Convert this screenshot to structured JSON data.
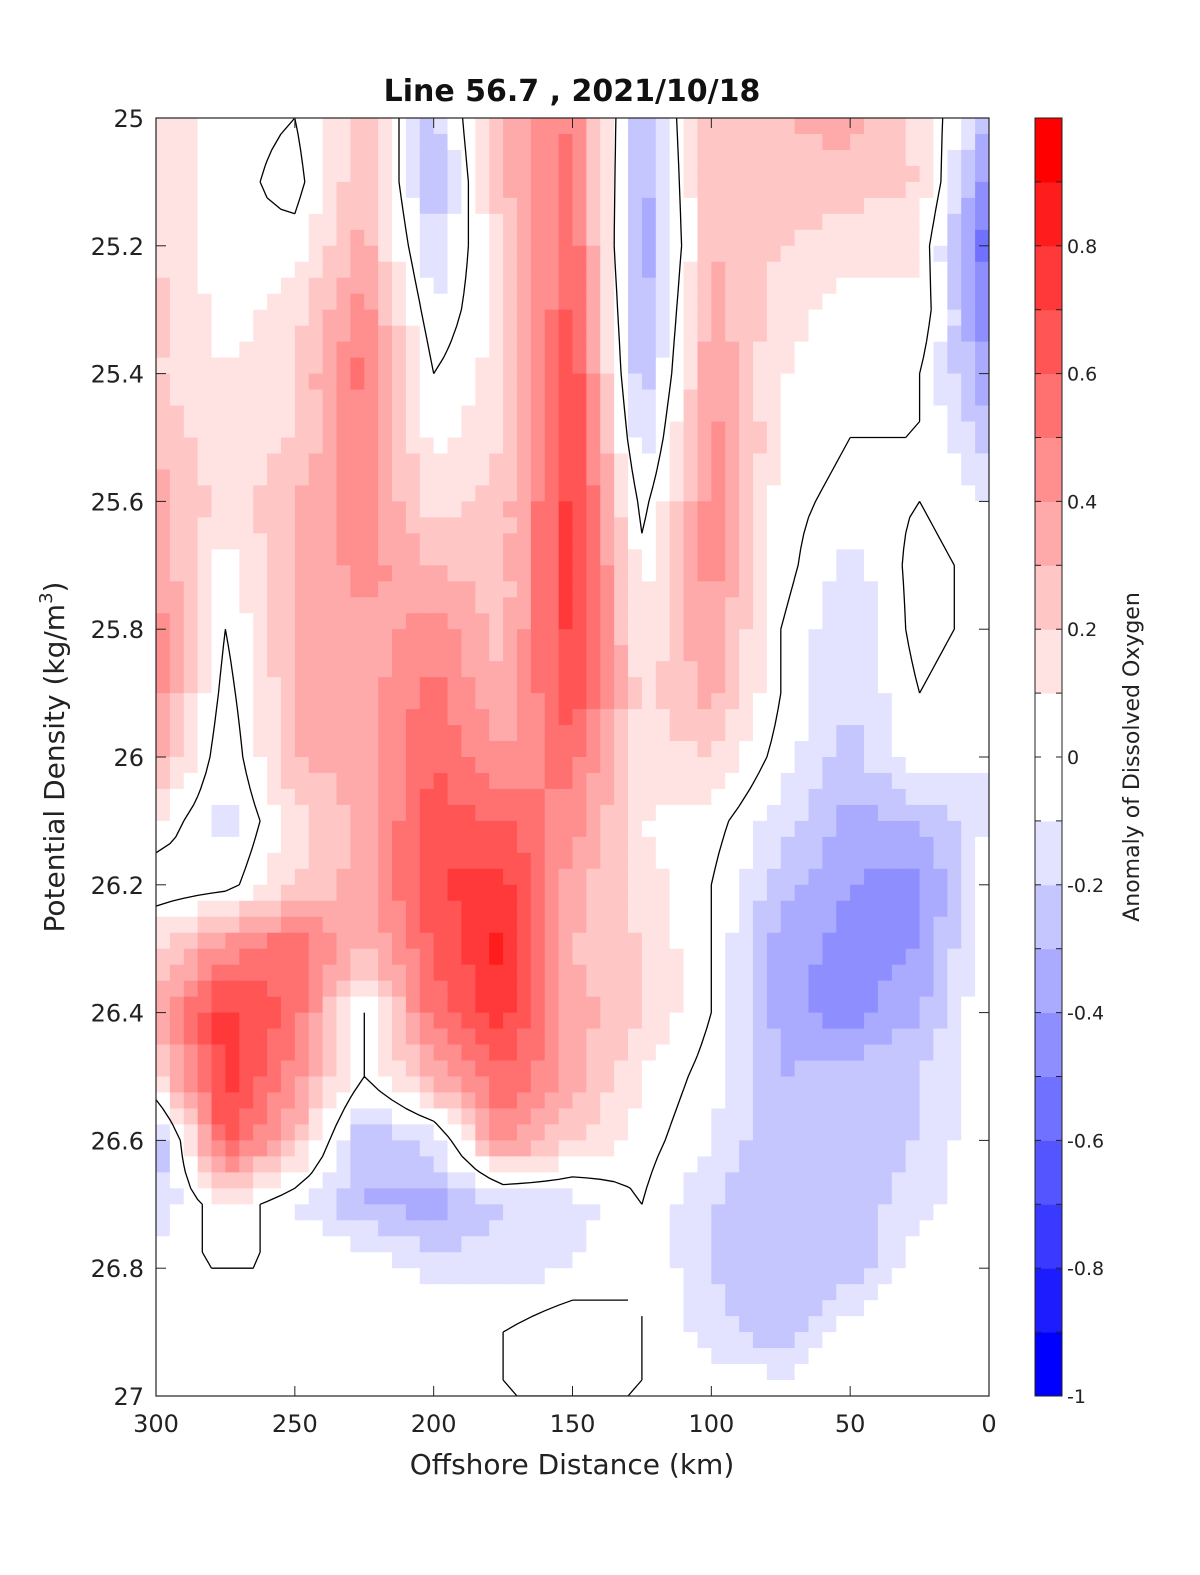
{
  "chart_data": {
    "type": "heatmap",
    "title": "Line 56.7 , 2021/10/18",
    "xlabel": "Offshore Distance (km)",
    "ylabel": "Potential Density (kg/m",
    "ylabel_sup": "3",
    "ylabel_close": ")",
    "colorbar_label": "Anomaly of Dissolved Oxygen",
    "xlim": [
      300,
      0
    ],
    "ylim": [
      25,
      27
    ],
    "y_reversed": true,
    "x_ticks": [
      "300",
      "250",
      "200",
      "150",
      "100",
      "50",
      "0"
    ],
    "y_ticks": [
      "25",
      "25.2",
      "25.4",
      "25.6",
      "25.8",
      "26",
      "26.2",
      "26.4",
      "26.6",
      "26.8",
      "27"
    ],
    "colorbar_ticks": [
      "0.8",
      "0.6",
      "0.4",
      "0.2",
      "0",
      "-0.2",
      "-0.4",
      "-0.6",
      "-0.8",
      "-1"
    ],
    "colorbar_range": [
      -1,
      1
    ],
    "contour_level_step": 0.1,
    "contour_line_level": 0,
    "colors": {
      "negative": "#0000ff",
      "positive": "#ff0000",
      "neutral": "#ffffff",
      "contour": "#000000"
    },
    "grid_x_km": [
      300,
      275,
      250,
      225,
      200,
      175,
      150,
      125,
      100,
      75,
      50,
      25,
      0
    ],
    "grid_y_density": [
      25.0,
      25.1,
      25.2,
      25.3,
      25.4,
      25.5,
      25.6,
      25.7,
      25.8,
      25.9,
      26.0,
      26.1,
      26.2,
      26.3,
      26.4,
      26.5,
      26.6,
      26.7,
      26.8,
      26.9,
      27.0
    ],
    "anomaly_grid": [
      [
        0.15,
        0.05,
        0.0,
        0.25,
        -0.25,
        0.35,
        0.5,
        -0.3,
        0.3,
        0.3,
        0.35,
        0.15,
        -0.3
      ],
      [
        0.2,
        0.05,
        -0.05,
        0.3,
        -0.3,
        0.3,
        0.55,
        -0.35,
        0.3,
        0.25,
        0.25,
        0.2,
        -0.45
      ],
      [
        0.2,
        0.0,
        0.05,
        0.35,
        -0.2,
        0.2,
        0.6,
        -0.4,
        0.3,
        0.2,
        0.15,
        0.1,
        -0.6
      ],
      [
        0.25,
        0.05,
        0.15,
        0.45,
        -0.1,
        0.15,
        0.65,
        -0.35,
        0.35,
        0.15,
        0.05,
        0.1,
        -0.5
      ],
      [
        0.2,
        0.1,
        0.2,
        0.55,
        0.0,
        0.15,
        0.7,
        -0.3,
        0.4,
        0.1,
        0.05,
        0.0,
        -0.4
      ],
      [
        0.3,
        0.1,
        0.2,
        0.5,
        0.05,
        0.2,
        0.75,
        -0.2,
        0.45,
        0.1,
        0.0,
        0.0,
        -0.25
      ],
      [
        0.35,
        0.15,
        0.3,
        0.45,
        0.15,
        0.25,
        0.75,
        -0.05,
        0.45,
        0.05,
        -0.05,
        0.0,
        -0.1
      ],
      [
        0.4,
        0.05,
        0.3,
        0.45,
        0.3,
        0.25,
        0.75,
        0.05,
        0.45,
        0.05,
        -0.15,
        0.05,
        -0.05
      ],
      [
        0.45,
        0.0,
        0.3,
        0.35,
        0.45,
        0.25,
        0.75,
        0.1,
        0.4,
        0.0,
        -0.2,
        0.05,
        -0.05
      ],
      [
        0.45,
        -0.05,
        0.3,
        0.35,
        0.55,
        0.3,
        0.7,
        0.15,
        0.35,
        0.0,
        -0.2,
        0.0,
        -0.1
      ],
      [
        0.35,
        -0.1,
        0.3,
        0.35,
        0.6,
        0.4,
        0.55,
        0.15,
        0.2,
        -0.05,
        -0.25,
        0.0,
        -0.1
      ],
      [
        0.1,
        -0.15,
        0.15,
        0.35,
        0.65,
        0.6,
        0.45,
        0.1,
        0.05,
        -0.15,
        -0.35,
        -0.3,
        -0.1
      ],
      [
        -0.1,
        -0.05,
        0.2,
        0.35,
        0.7,
        0.75,
        0.35,
        0.15,
        0.0,
        -0.25,
        -0.4,
        -0.45,
        0.0
      ],
      [
        0.2,
        0.45,
        0.6,
        0.3,
        0.6,
        0.85,
        0.3,
        0.2,
        0.0,
        -0.35,
        -0.45,
        -0.4,
        0.0
      ],
      [
        0.3,
        0.75,
        0.55,
        0.0,
        0.55,
        0.75,
        0.35,
        0.2,
        0.0,
        -0.35,
        -0.45,
        -0.3,
        0.0
      ],
      [
        0.2,
        0.75,
        0.45,
        0.0,
        0.35,
        0.6,
        0.35,
        0.1,
        -0.05,
        -0.3,
        -0.25,
        -0.2,
        0.0
      ],
      [
        -0.35,
        0.65,
        0.3,
        -0.3,
        -0.15,
        0.45,
        0.2,
        0.05,
        -0.1,
        -0.3,
        -0.25,
        -0.2,
        0.0
      ],
      [
        -0.2,
        0.1,
        -0.1,
        -0.3,
        -0.35,
        -0.2,
        -0.15,
        0.0,
        -0.2,
        -0.3,
        -0.25,
        -0.15,
        0.0
      ],
      [
        0.0,
        0.0,
        0.0,
        0.0,
        -0.15,
        -0.15,
        -0.1,
        0.0,
        -0.2,
        -0.3,
        -0.3,
        0.0,
        0.0
      ],
      [
        0.0,
        0.0,
        0.0,
        0.0,
        0.0,
        0.0,
        0.1,
        0.0,
        -0.15,
        -0.3,
        0.0,
        0.0,
        0.0
      ],
      [
        0.0,
        0.0,
        0.0,
        0.0,
        0.0,
        0.0,
        0.0,
        0.0,
        0.0,
        0.0,
        0.0,
        0.0,
        0.0
      ]
    ]
  }
}
